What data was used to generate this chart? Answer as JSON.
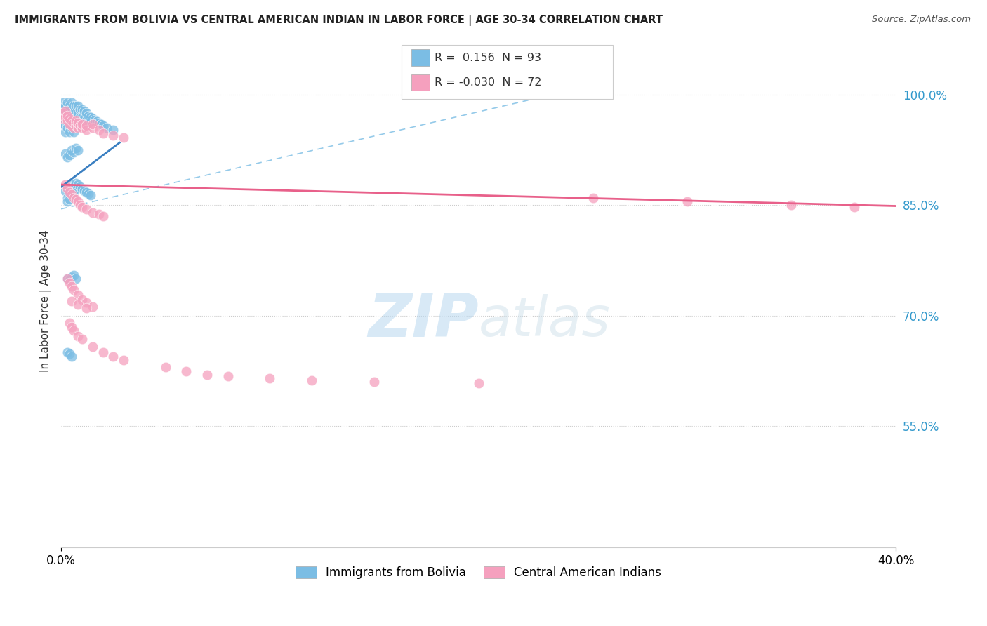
{
  "title": "IMMIGRANTS FROM BOLIVIA VS CENTRAL AMERICAN INDIAN IN LABOR FORCE | AGE 30-34 CORRELATION CHART",
  "source": "Source: ZipAtlas.com",
  "ylabel": "In Labor Force | Age 30-34",
  "xlim": [
    0.0,
    0.4
  ],
  "ylim": [
    0.385,
    1.055
  ],
  "x_tick_labels": [
    "0.0%",
    "40.0%"
  ],
  "x_tick_pos": [
    0.0,
    0.4
  ],
  "y_tick_labels": [
    "55.0%",
    "70.0%",
    "85.0%",
    "100.0%"
  ],
  "y_tick_pos": [
    0.55,
    0.7,
    0.85,
    1.0
  ],
  "bolivia_R": 0.156,
  "bolivia_N": 93,
  "caindian_R": -0.03,
  "caindian_N": 72,
  "bolivia_color": "#7bbde4",
  "caindian_color": "#f5a0be",
  "bolivia_line_color": "#3a7fc1",
  "caindian_line_color": "#e8608a",
  "legend_labels": [
    "Immigrants from Bolivia",
    "Central American Indians"
  ],
  "watermark_zip": "ZIP",
  "watermark_atlas": "atlas",
  "bolivia_x": [
    0.001,
    0.001,
    0.001,
    0.001,
    0.001,
    0.002,
    0.002,
    0.002,
    0.002,
    0.002,
    0.003,
    0.003,
    0.003,
    0.003,
    0.003,
    0.004,
    0.004,
    0.004,
    0.004,
    0.004,
    0.005,
    0.005,
    0.005,
    0.005,
    0.005,
    0.006,
    0.006,
    0.006,
    0.006,
    0.006,
    0.007,
    0.007,
    0.007,
    0.007,
    0.008,
    0.008,
    0.008,
    0.008,
    0.009,
    0.009,
    0.009,
    0.01,
    0.01,
    0.01,
    0.011,
    0.011,
    0.011,
    0.012,
    0.012,
    0.013,
    0.013,
    0.014,
    0.015,
    0.016,
    0.017,
    0.018,
    0.019,
    0.02,
    0.022,
    0.025,
    0.002,
    0.003,
    0.003,
    0.004,
    0.004,
    0.005,
    0.005,
    0.006,
    0.006,
    0.007,
    0.007,
    0.008,
    0.009,
    0.01,
    0.011,
    0.012,
    0.013,
    0.014,
    0.002,
    0.003,
    0.004,
    0.005,
    0.006,
    0.007,
    0.008,
    0.003,
    0.004,
    0.005,
    0.006,
    0.007,
    0.003,
    0.004,
    0.005
  ],
  "bolivia_y": [
    0.99,
    0.98,
    0.975,
    0.965,
    0.96,
    0.985,
    0.975,
    0.965,
    0.958,
    0.95,
    0.99,
    0.98,
    0.97,
    0.96,
    0.955,
    0.985,
    0.975,
    0.965,
    0.958,
    0.95,
    0.99,
    0.98,
    0.97,
    0.96,
    0.955,
    0.985,
    0.975,
    0.965,
    0.958,
    0.95,
    0.985,
    0.975,
    0.965,
    0.958,
    0.985,
    0.975,
    0.965,
    0.958,
    0.98,
    0.97,
    0.96,
    0.98,
    0.97,
    0.96,
    0.978,
    0.968,
    0.96,
    0.975,
    0.965,
    0.972,
    0.962,
    0.97,
    0.968,
    0.966,
    0.964,
    0.962,
    0.96,
    0.958,
    0.955,
    0.952,
    0.87,
    0.86,
    0.855,
    0.865,
    0.858,
    0.878,
    0.87,
    0.875,
    0.868,
    0.88,
    0.872,
    0.878,
    0.875,
    0.872,
    0.87,
    0.868,
    0.866,
    0.864,
    0.92,
    0.915,
    0.918,
    0.925,
    0.922,
    0.928,
    0.925,
    0.75,
    0.748,
    0.752,
    0.755,
    0.75,
    0.65,
    0.648,
    0.645
  ],
  "caindian_x": [
    0.001,
    0.001,
    0.002,
    0.002,
    0.003,
    0.003,
    0.004,
    0.004,
    0.005,
    0.005,
    0.006,
    0.006,
    0.007,
    0.007,
    0.008,
    0.008,
    0.009,
    0.01,
    0.01,
    0.012,
    0.012,
    0.015,
    0.015,
    0.018,
    0.02,
    0.025,
    0.03,
    0.002,
    0.003,
    0.004,
    0.005,
    0.006,
    0.007,
    0.008,
    0.009,
    0.01,
    0.012,
    0.015,
    0.018,
    0.02,
    0.003,
    0.004,
    0.005,
    0.006,
    0.008,
    0.01,
    0.012,
    0.015,
    0.004,
    0.005,
    0.006,
    0.008,
    0.01,
    0.015,
    0.02,
    0.025,
    0.03,
    0.05,
    0.06,
    0.07,
    0.08,
    0.1,
    0.12,
    0.15,
    0.2,
    0.255,
    0.3,
    0.35,
    0.38,
    0.005,
    0.008,
    0.012
  ],
  "caindian_y": [
    0.968,
    0.975,
    0.97,
    0.978,
    0.965,
    0.972,
    0.96,
    0.968,
    0.958,
    0.965,
    0.955,
    0.962,
    0.958,
    0.965,
    0.955,
    0.962,
    0.958,
    0.955,
    0.96,
    0.952,
    0.958,
    0.955,
    0.96,
    0.952,
    0.948,
    0.945,
    0.942,
    0.878,
    0.872,
    0.868,
    0.865,
    0.86,
    0.858,
    0.855,
    0.85,
    0.848,
    0.845,
    0.84,
    0.838,
    0.835,
    0.75,
    0.745,
    0.74,
    0.735,
    0.728,
    0.722,
    0.718,
    0.712,
    0.69,
    0.685,
    0.68,
    0.672,
    0.668,
    0.658,
    0.65,
    0.645,
    0.64,
    0.63,
    0.625,
    0.62,
    0.618,
    0.615,
    0.612,
    0.61,
    0.608,
    0.86,
    0.855,
    0.85,
    0.848,
    0.72,
    0.715,
    0.71
  ]
}
